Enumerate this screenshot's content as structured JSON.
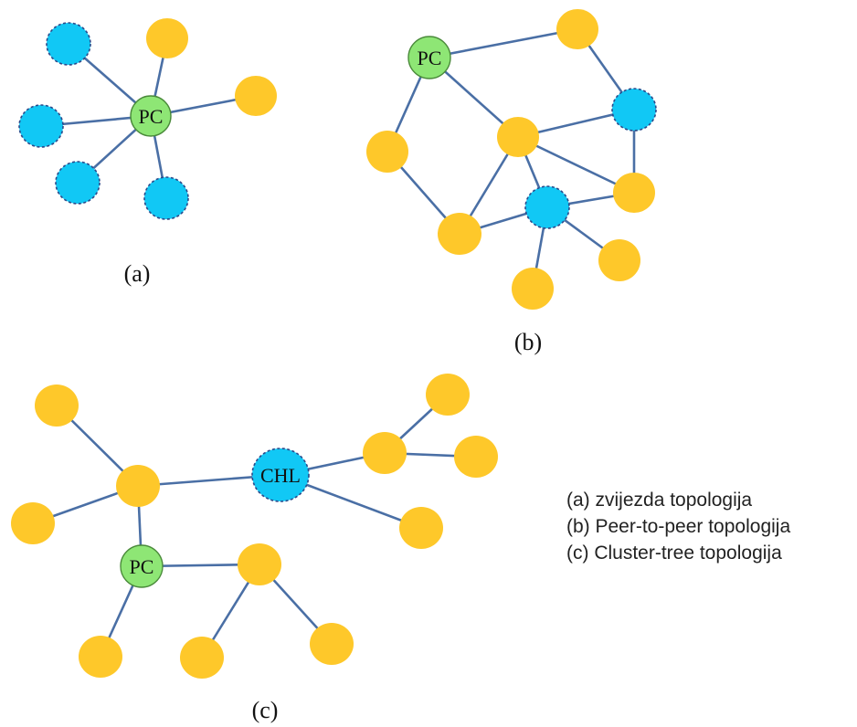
{
  "diagrams": {
    "a": {
      "caption": "(a)",
      "hub_label": "PC"
    },
    "b": {
      "caption": "(b)",
      "hub_label": "PC"
    },
    "c": {
      "caption": "(c)",
      "hub_label": "PC",
      "head_label": "CHL"
    }
  },
  "legend": {
    "items": [
      "(a) zvijezda topologija",
      "(b) Peer-to-peer topologija",
      "(c) Cluster-tree topologija"
    ]
  },
  "colors": {
    "coordinator": "#8ee675",
    "full_function_device": "#11c8f5",
    "reduced_function_device": "#fec82a",
    "link": "#4a6fa5"
  }
}
